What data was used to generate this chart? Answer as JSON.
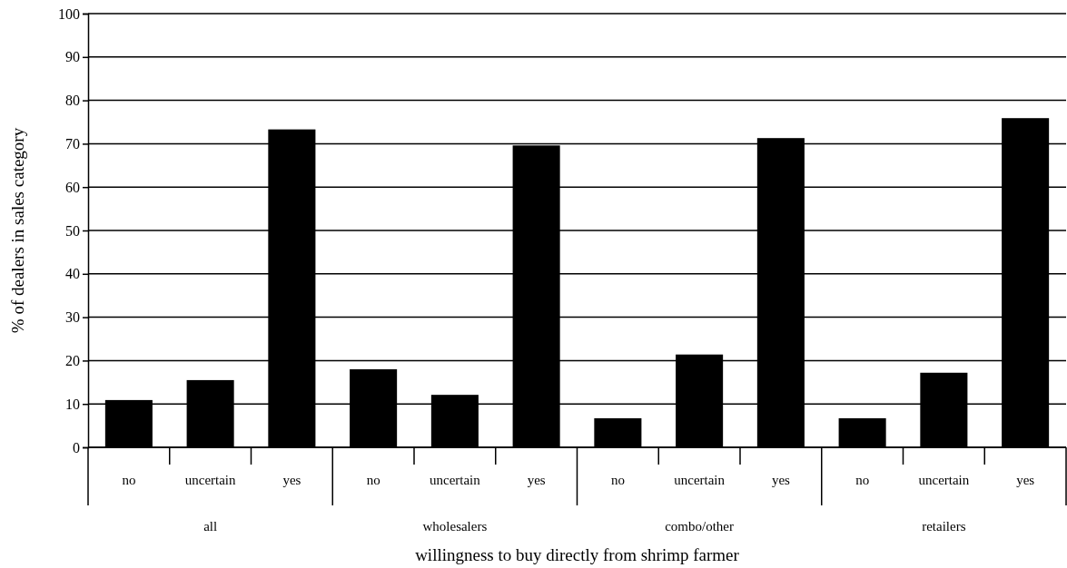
{
  "chart_data": {
    "type": "bar",
    "xlabel": "willingness to buy directly from shrimp farmer",
    "ylabel": "% of dealers in sales category",
    "categories": [
      "no",
      "uncertain",
      "yes",
      "no",
      "uncertain",
      "yes",
      "no",
      "uncertain",
      "yes",
      "no",
      "uncertain",
      "yes"
    ],
    "values": [
      10.9,
      15.5,
      73.3,
      18.0,
      12.1,
      69.6,
      6.7,
      21.4,
      71.3,
      6.7,
      17.2,
      75.9
    ],
    "color": "#000000",
    "ylim": [
      0,
      100
    ],
    "yticks": [
      0,
      10,
      20,
      30,
      40,
      50,
      60,
      70,
      80,
      90,
      100
    ],
    "grid": "y",
    "annotations": [
      "all",
      "wholesalers",
      "combo/other",
      "retailers"
    ]
  }
}
